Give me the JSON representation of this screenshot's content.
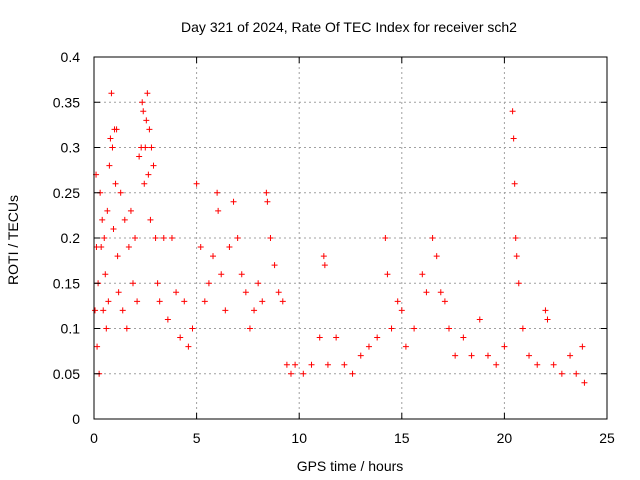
{
  "chart_data": {
    "type": "scatter",
    "title": "Day 321 of 2024, Rate Of TEC Index for receiver sch2",
    "xlabel": "GPS time / hours",
    "ylabel": "ROTI / TECUs",
    "xlim": [
      0,
      25
    ],
    "ylim": [
      0,
      0.4
    ],
    "x_ticks": [
      0,
      5,
      10,
      15,
      20,
      25
    ],
    "x_tick_labels": [
      "0",
      "5",
      "10",
      "15",
      "20",
      "25"
    ],
    "y_ticks": [
      0,
      0.05,
      0.1,
      0.15,
      0.2,
      0.25,
      0.3,
      0.35,
      0.4
    ],
    "y_tick_labels": [
      "0",
      "0.05",
      "0.1",
      "0.15",
      "0.2",
      "0.25",
      "0.3",
      "0.35",
      "0.4"
    ],
    "grid": true,
    "legend": "none",
    "marker": "+",
    "color": "#ff0000",
    "series": [
      {
        "points": [
          [
            0.05,
            0.12
          ],
          [
            0.1,
            0.27
          ],
          [
            0.12,
            0.19
          ],
          [
            0.15,
            0.08
          ],
          [
            0.2,
            0.15
          ],
          [
            0.25,
            0.05
          ],
          [
            0.3,
            0.25
          ],
          [
            0.35,
            0.19
          ],
          [
            0.4,
            0.22
          ],
          [
            0.45,
            0.12
          ],
          [
            0.5,
            0.2
          ],
          [
            0.55,
            0.16
          ],
          [
            0.6,
            0.1
          ],
          [
            0.65,
            0.23
          ],
          [
            0.7,
            0.13
          ],
          [
            0.75,
            0.28
          ],
          [
            0.8,
            0.31
          ],
          [
            0.85,
            0.36
          ],
          [
            0.9,
            0.3
          ],
          [
            0.95,
            0.21
          ],
          [
            1.0,
            0.32
          ],
          [
            1.05,
            0.26
          ],
          [
            1.1,
            0.32
          ],
          [
            1.15,
            0.18
          ],
          [
            1.2,
            0.14
          ],
          [
            1.3,
            0.25
          ],
          [
            1.4,
            0.12
          ],
          [
            1.5,
            0.22
          ],
          [
            1.6,
            0.1
          ],
          [
            1.7,
            0.19
          ],
          [
            1.8,
            0.23
          ],
          [
            1.9,
            0.15
          ],
          [
            2.0,
            0.2
          ],
          [
            2.1,
            0.13
          ],
          [
            2.2,
            0.29
          ],
          [
            2.3,
            0.3
          ],
          [
            2.35,
            0.35
          ],
          [
            2.4,
            0.34
          ],
          [
            2.45,
            0.26
          ],
          [
            2.5,
            0.3
          ],
          [
            2.55,
            0.33
          ],
          [
            2.6,
            0.36
          ],
          [
            2.65,
            0.27
          ],
          [
            2.7,
            0.32
          ],
          [
            2.75,
            0.22
          ],
          [
            2.8,
            0.3
          ],
          [
            2.9,
            0.28
          ],
          [
            3.0,
            0.2
          ],
          [
            3.1,
            0.15
          ],
          [
            3.2,
            0.13
          ],
          [
            3.4,
            0.2
          ],
          [
            3.6,
            0.11
          ],
          [
            3.8,
            0.2
          ],
          [
            4.0,
            0.14
          ],
          [
            4.2,
            0.09
          ],
          [
            4.4,
            0.13
          ],
          [
            4.6,
            0.08
          ],
          [
            4.8,
            0.1
          ],
          [
            5.0,
            0.26
          ],
          [
            5.2,
            0.19
          ],
          [
            5.4,
            0.13
          ],
          [
            5.6,
            0.15
          ],
          [
            5.8,
            0.18
          ],
          [
            6.0,
            0.25
          ],
          [
            6.05,
            0.23
          ],
          [
            6.2,
            0.16
          ],
          [
            6.4,
            0.12
          ],
          [
            6.6,
            0.19
          ],
          [
            6.8,
            0.24
          ],
          [
            7.0,
            0.2
          ],
          [
            7.2,
            0.16
          ],
          [
            7.4,
            0.14
          ],
          [
            7.6,
            0.1
          ],
          [
            7.8,
            0.12
          ],
          [
            8.0,
            0.15
          ],
          [
            8.2,
            0.13
          ],
          [
            8.4,
            0.25
          ],
          [
            8.45,
            0.24
          ],
          [
            8.6,
            0.2
          ],
          [
            8.8,
            0.17
          ],
          [
            9.0,
            0.14
          ],
          [
            9.2,
            0.13
          ],
          [
            9.4,
            0.06
          ],
          [
            9.6,
            0.05
          ],
          [
            9.8,
            0.06
          ],
          [
            10.2,
            0.05
          ],
          [
            10.6,
            0.06
          ],
          [
            11.0,
            0.09
          ],
          [
            11.2,
            0.18
          ],
          [
            11.25,
            0.17
          ],
          [
            11.4,
            0.06
          ],
          [
            11.8,
            0.09
          ],
          [
            12.2,
            0.06
          ],
          [
            12.6,
            0.05
          ],
          [
            13.0,
            0.07
          ],
          [
            13.4,
            0.08
          ],
          [
            13.8,
            0.09
          ],
          [
            14.2,
            0.2
          ],
          [
            14.3,
            0.16
          ],
          [
            14.5,
            0.1
          ],
          [
            14.8,
            0.13
          ],
          [
            15.0,
            0.12
          ],
          [
            15.2,
            0.08
          ],
          [
            15.6,
            0.1
          ],
          [
            16.0,
            0.16
          ],
          [
            16.2,
            0.14
          ],
          [
            16.5,
            0.2
          ],
          [
            16.7,
            0.18
          ],
          [
            16.9,
            0.14
          ],
          [
            17.1,
            0.13
          ],
          [
            17.3,
            0.1
          ],
          [
            17.6,
            0.07
          ],
          [
            18.0,
            0.09
          ],
          [
            18.4,
            0.07
          ],
          [
            18.8,
            0.11
          ],
          [
            19.2,
            0.07
          ],
          [
            19.6,
            0.06
          ],
          [
            20.0,
            0.08
          ],
          [
            20.4,
            0.34
          ],
          [
            20.45,
            0.31
          ],
          [
            20.5,
            0.26
          ],
          [
            20.55,
            0.2
          ],
          [
            20.6,
            0.18
          ],
          [
            20.7,
            0.15
          ],
          [
            20.9,
            0.1
          ],
          [
            21.2,
            0.07
          ],
          [
            21.6,
            0.06
          ],
          [
            22.0,
            0.12
          ],
          [
            22.1,
            0.11
          ],
          [
            22.4,
            0.06
          ],
          [
            22.8,
            0.05
          ],
          [
            23.2,
            0.07
          ],
          [
            23.5,
            0.05
          ],
          [
            23.8,
            0.08
          ],
          [
            23.9,
            0.04
          ]
        ]
      }
    ]
  }
}
